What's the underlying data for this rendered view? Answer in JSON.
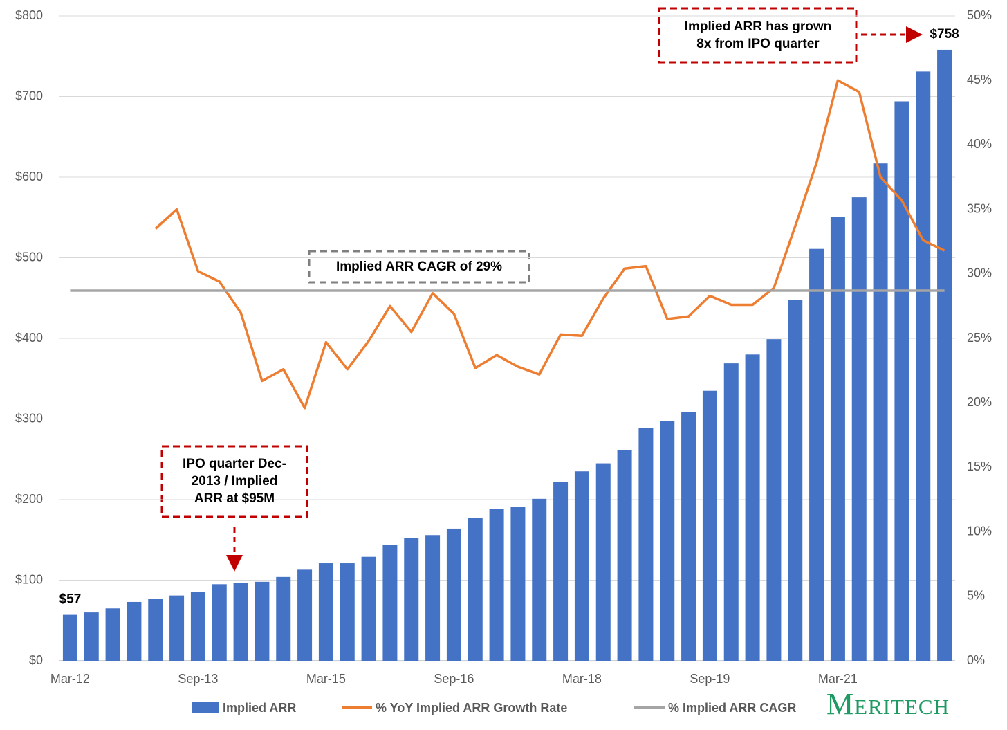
{
  "chart_data": {
    "type": "bar",
    "categories": [
      "Mar-12",
      null,
      null,
      null,
      null,
      null,
      "Sep-13",
      null,
      null,
      null,
      null,
      null,
      "Mar-15",
      null,
      null,
      null,
      null,
      null,
      "Sep-16",
      null,
      null,
      null,
      null,
      null,
      "Mar-18",
      null,
      null,
      null,
      null,
      null,
      "Sep-19",
      null,
      null,
      null,
      null,
      null,
      "Mar-21",
      null,
      null,
      null,
      null,
      null
    ],
    "series": [
      {
        "name": "Implied ARR",
        "color": "#4472c4",
        "type": "bar",
        "values": [
          57,
          60,
          65,
          73,
          77,
          81,
          85,
          95,
          97,
          98,
          104,
          113,
          121,
          121,
          129,
          144,
          152,
          156,
          164,
          177,
          188,
          191,
          201,
          222,
          235,
          245,
          261,
          289,
          297,
          309,
          335,
          369,
          380,
          399,
          448,
          511,
          551,
          575,
          617,
          694,
          731,
          758
        ],
        "value_labels": [
          "$57",
          null,
          null,
          null,
          null,
          null,
          null,
          null,
          null,
          null,
          null,
          null,
          null,
          null,
          null,
          null,
          null,
          null,
          null,
          null,
          null,
          null,
          null,
          null,
          null,
          null,
          null,
          null,
          null,
          null,
          null,
          null,
          null,
          null,
          null,
          null,
          null,
          null,
          null,
          null,
          null,
          "$758"
        ]
      },
      {
        "name": "% YoY Implied ARR Growth Rate",
        "color": "#ed7d31",
        "type": "line",
        "axis": "y2",
        "values": [
          null,
          null,
          null,
          null,
          33.5,
          35.0,
          30.2,
          29.4,
          27.0,
          21.7,
          22.6,
          19.6,
          24.7,
          22.6,
          24.8,
          27.5,
          25.5,
          28.5,
          26.9,
          22.7,
          23.7,
          22.8,
          22.2,
          25.3,
          25.2,
          28.1,
          30.4,
          30.6,
          26.5,
          26.7,
          28.3,
          27.6,
          27.6,
          28.9,
          33.7,
          38.6,
          45.0,
          44.1,
          37.5,
          35.7,
          32.6,
          31.8
        ]
      },
      {
        "name": "% Implied ARR CAGR",
        "color": "#a5a5a5",
        "type": "line",
        "axis": "y2",
        "values": [
          28.7,
          28.7,
          28.7,
          28.7,
          28.7,
          28.7,
          28.7,
          28.7,
          28.7,
          28.7,
          28.7,
          28.7,
          28.7,
          28.7,
          28.7,
          28.7,
          28.7,
          28.7,
          28.7,
          28.7,
          28.7,
          28.7,
          28.7,
          28.7,
          28.7,
          28.7,
          28.7,
          28.7,
          28.7,
          28.7,
          28.7,
          28.7,
          28.7,
          28.7,
          28.7,
          28.7,
          28.7,
          28.7,
          28.7,
          28.7,
          28.7,
          28.7
        ]
      }
    ],
    "ylim": [
      0,
      800
    ],
    "yticks": [
      {
        "value": 0,
        "label": "$0"
      },
      {
        "value": 100,
        "label": "$100"
      },
      {
        "value": 200,
        "label": "$200"
      },
      {
        "value": 300,
        "label": "$300"
      },
      {
        "value": 400,
        "label": "$400"
      },
      {
        "value": 500,
        "label": "$500"
      },
      {
        "value": 600,
        "label": "$600"
      },
      {
        "value": 700,
        "label": "$700"
      },
      {
        "value": 800,
        "label": "$800"
      }
    ],
    "y2lim": [
      0,
      50
    ],
    "y2ticks": [
      {
        "value": 0,
        "label": "0%"
      },
      {
        "value": 5,
        "label": "5%"
      },
      {
        "value": 10,
        "label": "10%"
      },
      {
        "value": 15,
        "label": "15%"
      },
      {
        "value": 20,
        "label": "20%"
      },
      {
        "value": 25,
        "label": "25%"
      },
      {
        "value": 30,
        "label": "30%"
      },
      {
        "value": 35,
        "label": "35%"
      },
      {
        "value": 40,
        "label": "40%"
      },
      {
        "value": 45,
        "label": "45%"
      },
      {
        "value": 50,
        "label": "50%"
      }
    ],
    "grid": true,
    "annotations": [
      {
        "lines": [
          "Implied ARR has grown",
          "8x from IPO quarter"
        ]
      },
      {
        "lines": [
          "Implied ARR CAGR of 29%"
        ]
      },
      {
        "lines": [
          "IPO quarter Dec-",
          "2013 / Implied",
          "ARR at $95M"
        ]
      }
    ],
    "logo": "Meritech"
  }
}
